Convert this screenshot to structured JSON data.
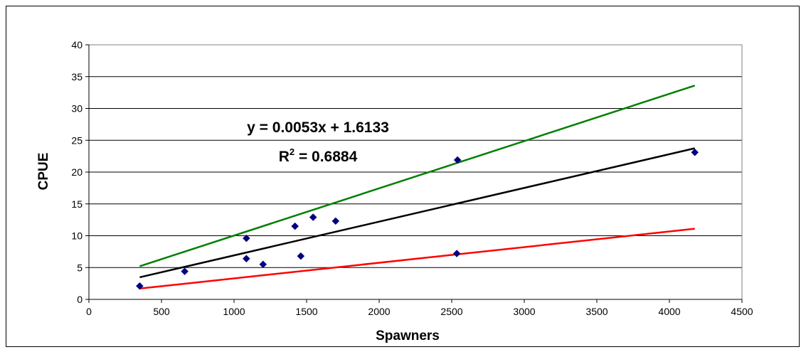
{
  "chart_data": {
    "type": "scatter",
    "xlabel": "Spawners",
    "ylabel": "CPUE",
    "xlim": [
      0,
      4500
    ],
    "ylim": [
      0,
      40
    ],
    "xticks": [
      0,
      500,
      1000,
      1500,
      2000,
      2500,
      3000,
      3500,
      4000,
      4500
    ],
    "yticks": [
      0,
      5,
      10,
      15,
      20,
      25,
      30,
      35,
      40
    ],
    "grid": "horizontal",
    "marker_color": "#000080",
    "series": [
      {
        "values": [
          [
            350,
            2.1
          ],
          [
            660,
            4.4
          ],
          [
            1085,
            9.6
          ],
          [
            1085,
            6.4
          ],
          [
            1200,
            5.5
          ],
          [
            1420,
            11.5
          ],
          [
            1460,
            6.8
          ],
          [
            1545,
            12.9
          ],
          [
            1700,
            12.3
          ],
          [
            2540,
            21.9
          ],
          [
            2535,
            7.2
          ],
          [
            4175,
            23.1
          ]
        ]
      }
    ],
    "lines": [
      {
        "color": "#008000",
        "x": [
          350,
          4175
        ],
        "y": [
          5.2,
          33.6
        ]
      },
      {
        "color": "#000000",
        "x": [
          350,
          4175
        ],
        "y": [
          3.47,
          23.74
        ]
      },
      {
        "color": "#ff0000",
        "x": [
          350,
          4175
        ],
        "y": [
          1.7,
          11.1
        ]
      }
    ],
    "annotations": {
      "equation": "y = 0.0053x + 1.6133",
      "r2_prefix": "R",
      "r2_sup": "2",
      "r2_suffix": " = 0.6884"
    }
  }
}
